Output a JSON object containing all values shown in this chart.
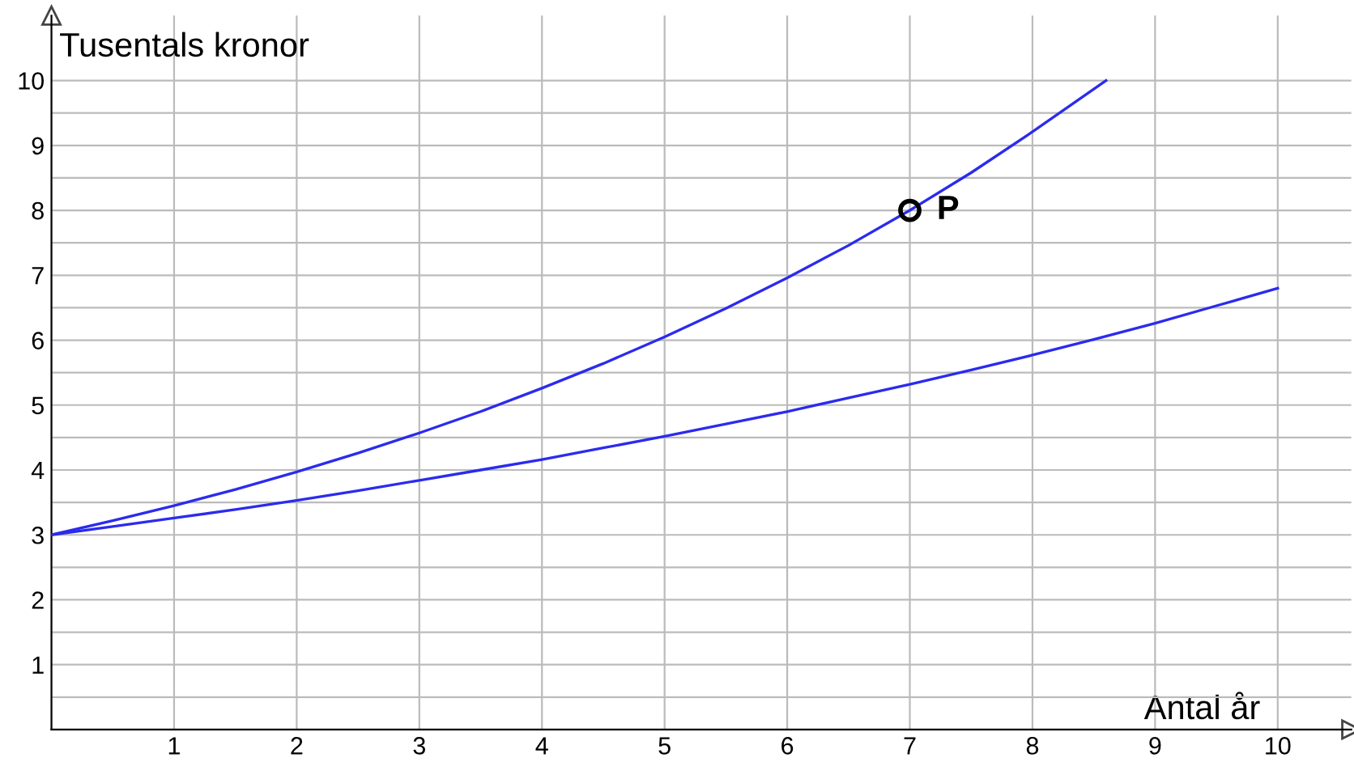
{
  "chart_data": {
    "type": "line",
    "xlabel": "Antal år",
    "ylabel": "Tusentals kronor",
    "series": [
      {
        "color": "#2b2bee",
        "x": [
          0,
          0.5,
          1,
          1.5,
          2,
          2.5,
          3,
          3.5,
          4,
          4.5,
          5,
          5.5,
          6,
          6.5,
          7,
          7.5,
          8,
          8.6
        ],
        "values": [
          3.0,
          3.22,
          3.45,
          3.7,
          3.97,
          4.26,
          4.57,
          4.9,
          5.26,
          5.64,
          6.05,
          6.49,
          6.96,
          7.46,
          8.0,
          8.58,
          9.21,
          10.0
        ]
      },
      {
        "color": "#2b2bee",
        "x": [
          0,
          0.5,
          1,
          1.5,
          2,
          2.5,
          3,
          3.5,
          4,
          4.5,
          5,
          5.5,
          6,
          6.5,
          7,
          7.5,
          8,
          8.5,
          9,
          9.5,
          10
        ],
        "values": [
          3.0,
          3.13,
          3.26,
          3.39,
          3.53,
          3.68,
          3.84,
          4.0,
          4.16,
          4.34,
          4.52,
          4.71,
          4.9,
          5.11,
          5.32,
          5.54,
          5.77,
          6.01,
          6.26,
          6.53,
          6.8
        ]
      },
      {
        "type": "scatter",
        "color": "#000000",
        "x": [
          7
        ],
        "values": [
          8
        ],
        "marker": "circle"
      }
    ],
    "annotations": [
      {
        "text": "P",
        "x": 7,
        "y": 8
      }
    ],
    "xlim": [
      0,
      10.6
    ],
    "ylim": [
      0,
      11
    ],
    "xticks": [
      1,
      2,
      3,
      4,
      5,
      6,
      7,
      8,
      9,
      10
    ],
    "yticks": [
      {
        "value": 0.5,
        "label": null
      },
      1,
      {
        "value": 1.5,
        "label": null
      },
      2,
      {
        "value": 2.5,
        "label": null
      },
      3,
      {
        "value": 3.5,
        "label": null
      },
      4,
      {
        "value": 4.5,
        "label": null
      },
      5,
      {
        "value": 5.5,
        "label": null
      },
      6,
      {
        "value": 6.5,
        "label": null
      },
      7,
      {
        "value": 7.5,
        "label": null
      },
      8,
      {
        "value": 8.5,
        "label": null
      },
      9,
      {
        "value": 9.5,
        "label": null
      },
      10
    ],
    "grid": true,
    "marker": "none",
    "line_style": "solid"
  }
}
